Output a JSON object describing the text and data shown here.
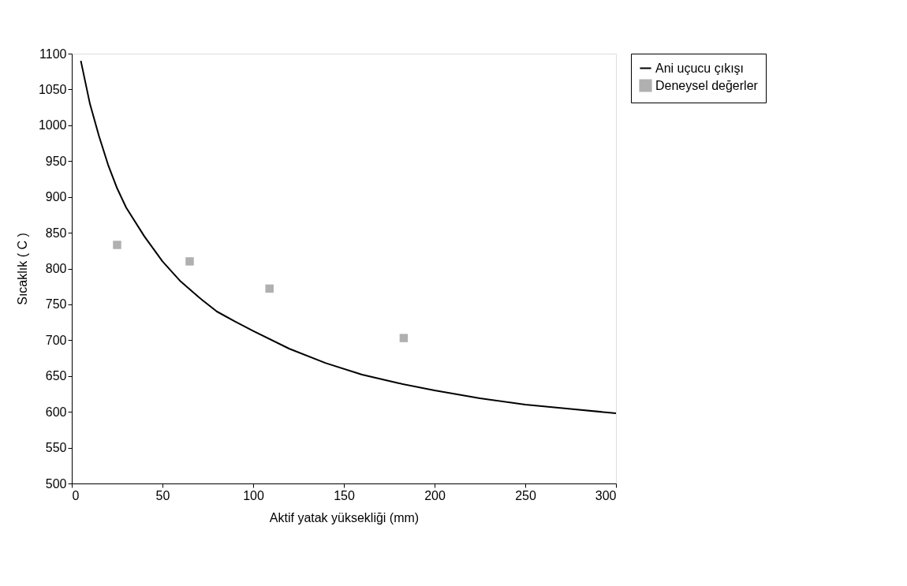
{
  "chart_data": {
    "type": "line",
    "xlabel": "Aktif yatak yüksekliği (mm)",
    "ylabel": "Sıcaklık ( C )",
    "xlim": [
      0,
      300
    ],
    "xticks": [
      0,
      50,
      100,
      150,
      200,
      250,
      300
    ],
    "ylim": [
      500,
      1100
    ],
    "yticks": [
      500,
      550,
      600,
      650,
      700,
      750,
      800,
      850,
      900,
      950,
      1000,
      1050,
      1100
    ],
    "grid": false,
    "legend": "right",
    "line_style": "solid",
    "series": [
      {
        "name": "Ani uçucu çıkışı",
        "marker": "none",
        "color": "#000000",
        "x": [
          5,
          10,
          15,
          20,
          25,
          30,
          40,
          50,
          60,
          70,
          80,
          90,
          100,
          120,
          140,
          160,
          180,
          200,
          225,
          250,
          275,
          300
        ],
        "values": [
          1090,
          1030,
          985,
          945,
          912,
          885,
          845,
          810,
          782,
          760,
          740,
          726,
          713,
          688,
          668,
          652,
          640,
          630,
          619,
          610,
          604,
          598
        ]
      },
      {
        "name": "Deneysel değerler",
        "type": "scatter",
        "marker": "square",
        "color": "#b0b0b0",
        "x": [
          25,
          65,
          109,
          183
        ],
        "values": [
          833,
          810,
          772,
          703
        ]
      }
    ]
  }
}
